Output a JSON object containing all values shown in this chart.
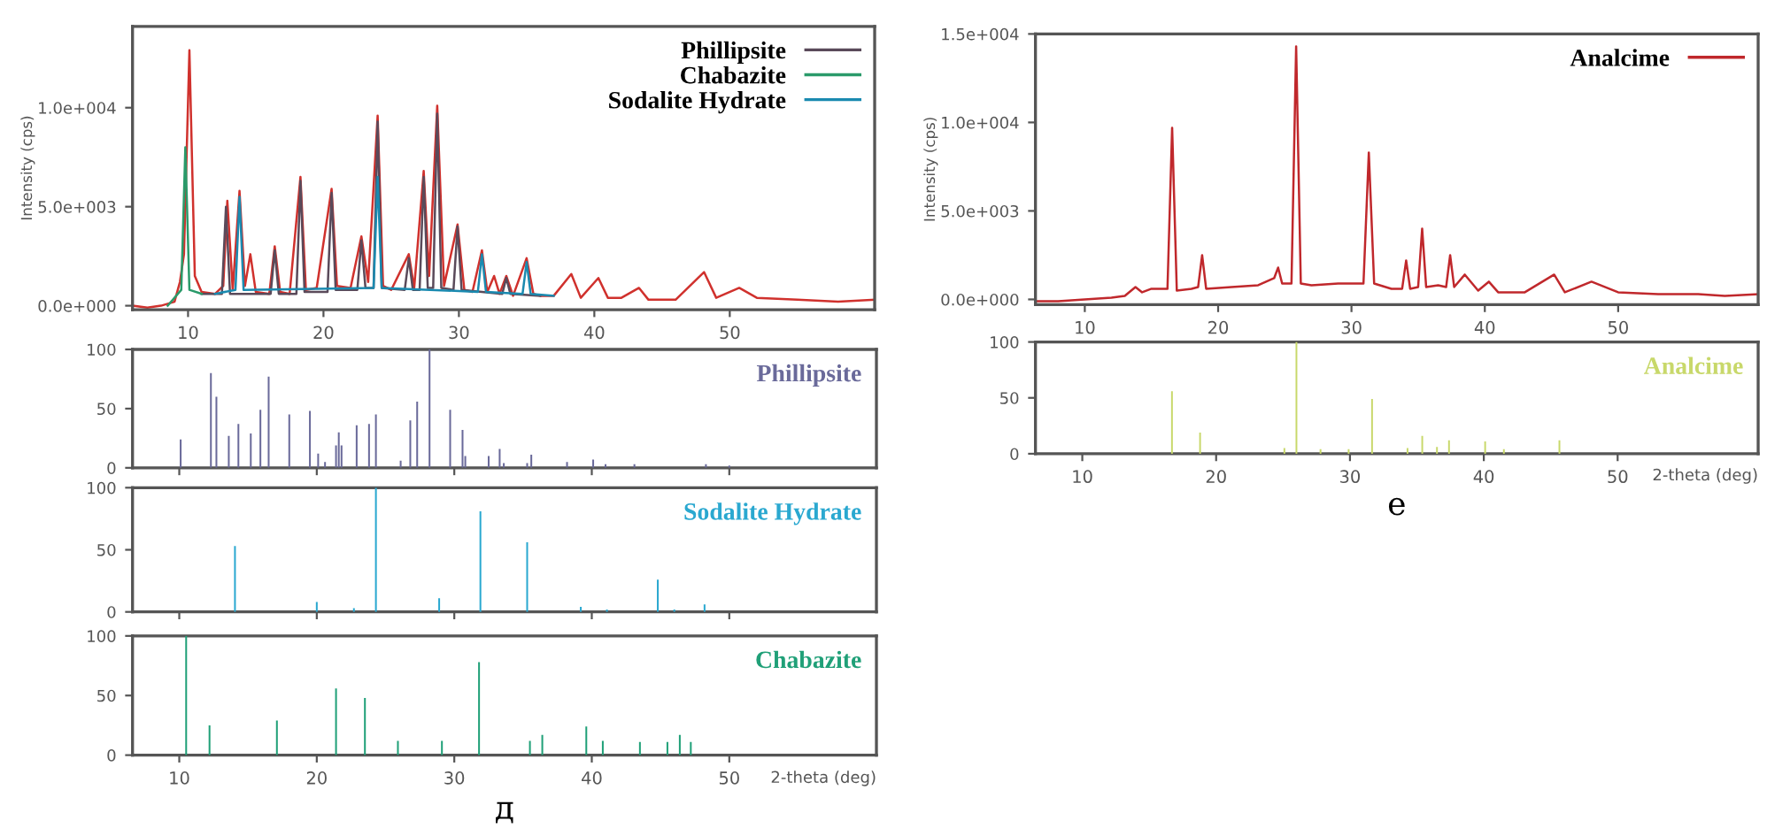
{
  "chart_data": [
    {
      "type": "line",
      "ylabel": "Intensity (cps)",
      "xlim": [
        5.9,
        60.7
      ],
      "ylim": [
        -200,
        14100
      ],
      "xticks": [
        10,
        20,
        30,
        40,
        50
      ],
      "yticks": [
        {
          "value": 0,
          "label": "0.0e+000"
        },
        {
          "value": 5000,
          "label": "5.0e+003"
        },
        {
          "value": 10000,
          "label": "1.0e+004"
        }
      ],
      "grid": false,
      "legend": "top right",
      "series": [
        {
          "color": "#d0312d",
          "x": [
            5.9,
            7,
            8,
            9,
            9.4,
            9.7,
            10.1,
            10.5,
            11,
            12,
            12.6,
            12.9,
            13.3,
            13.8,
            14.2,
            14.6,
            15,
            16,
            16.4,
            16.8,
            17.5,
            18.3,
            18.7,
            19.5,
            20.6,
            21,
            22,
            22.8,
            23.3,
            24.0,
            24.4,
            25,
            26.3,
            26.7,
            27.4,
            27.8,
            28.4,
            28.9,
            29.9,
            30.4,
            31,
            31.7,
            32.1,
            32.6,
            33,
            33.5,
            34,
            35,
            35.5,
            36,
            37,
            38.3,
            39,
            40.3,
            41,
            42,
            43.3,
            44,
            46,
            48.1,
            49,
            50.7,
            52,
            55,
            58,
            60.7
          ],
          "values": [
            0,
            -100,
            0,
            200,
            1200,
            2600,
            12900,
            1500,
            700,
            600,
            1000,
            5300,
            800,
            5800,
            1000,
            2600,
            700,
            600,
            3000,
            700,
            600,
            6500,
            800,
            900,
            5900,
            1000,
            900,
            3500,
            1200,
            9600,
            1000,
            800,
            2600,
            900,
            6800,
            1500,
            10100,
            1000,
            4100,
            800,
            700,
            2800,
            700,
            1500,
            600,
            1500,
            500,
            2400,
            600,
            500,
            500,
            1600,
            400,
            1400,
            400,
            400,
            900,
            300,
            300,
            1700,
            400,
            900,
            400,
            300,
            200,
            300
          ]
        },
        {
          "name": "Phillipsite",
          "color": "#5a4a5a",
          "x": [
            11,
            12.5,
            12.8,
            13.1,
            16.1,
            16.4,
            16.7,
            18.0,
            18.3,
            18.6,
            20.3,
            20.6,
            20.9,
            22.5,
            22.8,
            23.1,
            23.7,
            24.0,
            24.3,
            26.0,
            26.3,
            26.6,
            27.1,
            27.4,
            27.7,
            28.1,
            28.4,
            28.7,
            29.6,
            29.9,
            30.2,
            33.2,
            33.5,
            33.8,
            36
          ],
          "values": [
            600,
            600,
            5000,
            600,
            600,
            2800,
            600,
            600,
            6300,
            700,
            700,
            5700,
            800,
            800,
            3300,
            900,
            900,
            9300,
            900,
            800,
            2400,
            800,
            800,
            6500,
            900,
            900,
            9700,
            900,
            800,
            4000,
            800,
            600,
            1400,
            600,
            500
          ]
        },
        {
          "name": "Chabazite",
          "color": "#2a9a6a",
          "x": [
            8.5,
            9.5,
            9.8,
            10.1,
            11
          ],
          "values": [
            0,
            800,
            8000,
            800,
            600
          ]
        },
        {
          "name": "Sodalite Hydrate",
          "color": "#1a8ab0",
          "x": [
            12,
            13.5,
            13.8,
            14.1,
            23.7,
            24.0,
            24.3,
            31.4,
            31.7,
            32.0,
            34.7,
            35.0,
            35.3,
            37
          ],
          "values": [
            600,
            800,
            5500,
            800,
            900,
            6500,
            900,
            700,
            2600,
            700,
            600,
            2200,
            600,
            500
          ]
        }
      ]
    },
    {
      "type": "bar",
      "xlim": [
        6.6,
        60.7
      ],
      "ylim": [
        0,
        100
      ],
      "xticks": [
        10,
        20,
        30,
        40,
        50
      ],
      "yticks": [
        0,
        50,
        100
      ],
      "grid": false,
      "legend": "top right",
      "tick_labels": "y",
      "series": [
        {
          "name": "Phillipsite",
          "color": "#6a6a9a",
          "x": [
            10.1,
            12.3,
            12.7,
            13.6,
            14.3,
            15.2,
            15.9,
            16.5,
            18.0,
            19.5,
            20.1,
            20.6,
            21.4,
            21.6,
            21.8,
            22.9,
            23.8,
            24.3,
            26.1,
            26.8,
            27.3,
            28.2,
            29.7,
            30.6,
            30.8,
            32.5,
            33.3,
            33.6,
            35.3,
            35.6,
            38.2,
            40.1,
            41.0,
            43.1,
            48.3,
            50.0
          ],
          "values": [
            24,
            80,
            60,
            27,
            37,
            29,
            49,
            77,
            45,
            48,
            12,
            5,
            19,
            30,
            19,
            36,
            37,
            45,
            6,
            40,
            56,
            100,
            49,
            32,
            10,
            10,
            16,
            4,
            4,
            11,
            5,
            7,
            3,
            3,
            3,
            2
          ]
        }
      ]
    },
    {
      "type": "bar",
      "xlim": [
        6.6,
        60.7
      ],
      "ylim": [
        0,
        100
      ],
      "xticks": [
        10,
        20,
        30,
        40,
        50
      ],
      "yticks": [
        0,
        50,
        100
      ],
      "grid": false,
      "legend": "top right",
      "tick_labels": "y",
      "series": [
        {
          "name": "Sodalite Hydrate",
          "color": "#2aa8d0",
          "x": [
            14.05,
            20.0,
            22.7,
            24.3,
            28.9,
            31.9,
            35.3,
            39.2,
            41.1,
            44.8,
            46.0,
            48.2
          ],
          "values": [
            53,
            8,
            3,
            100,
            11,
            81,
            56,
            4,
            2,
            26,
            2,
            6
          ]
        }
      ]
    },
    {
      "type": "bar",
      "xlabel": "2-theta (deg)",
      "xlim": [
        6.6,
        60.7
      ],
      "ylim": [
        0,
        100
      ],
      "xticks": [
        10,
        20,
        30,
        40,
        50
      ],
      "yticks": [
        0,
        50,
        100
      ],
      "grid": false,
      "legend": "top right",
      "annotations": [
        "д"
      ],
      "series": [
        {
          "name": "Chabazite",
          "color": "#20a078",
          "x": [
            10.5,
            12.2,
            17.1,
            21.4,
            23.5,
            25.9,
            29.1,
            31.8,
            35.5,
            36.4,
            39.6,
            40.8,
            43.5,
            45.5,
            46.4,
            47.2
          ],
          "values": [
            100,
            25,
            29,
            56,
            48,
            12,
            12,
            78,
            12,
            17,
            24,
            12,
            11,
            11,
            17,
            11
          ]
        }
      ]
    },
    {
      "type": "line",
      "ylabel": "Intensity (cps)",
      "xlim": [
        6.3,
        60.5
      ],
      "ylim": [
        -300,
        15000
      ],
      "xticks": [
        10,
        20,
        30,
        40,
        50
      ],
      "yticks": [
        {
          "value": 0,
          "label": "0.0e+000"
        },
        {
          "value": 5000,
          "label": "5.0e+003"
        },
        {
          "value": 10000,
          "label": "1.0e+004"
        },
        {
          "value": 15000,
          "label": "1.5e+004"
        }
      ],
      "grid": false,
      "legend": "top right",
      "series": [
        {
          "name": "Analcime",
          "color": "#c0282c",
          "x": [
            6.3,
            8,
            10,
            12,
            13,
            13.8,
            14.3,
            15,
            16.2,
            16.55,
            16.9,
            18,
            18.5,
            18.8,
            19.1,
            21,
            23,
            24.2,
            24.5,
            24.8,
            25.5,
            25.85,
            26.2,
            27,
            29,
            30,
            30.9,
            31.3,
            31.7,
            33,
            33.8,
            34.1,
            34.4,
            35.0,
            35.3,
            35.6,
            36.5,
            37.1,
            37.4,
            37.7,
            38.5,
            39.5,
            40.3,
            41,
            43,
            45.2,
            46,
            48.0,
            50,
            53,
            56,
            58,
            60.5
          ],
          "values": [
            -100,
            -100,
            0,
            100,
            200,
            700,
            400,
            600,
            600,
            9700,
            500,
            600,
            700,
            2500,
            600,
            700,
            800,
            1200,
            1800,
            900,
            900,
            14300,
            900,
            800,
            900,
            900,
            900,
            8300,
            900,
            600,
            600,
            2200,
            600,
            700,
            4000,
            700,
            800,
            700,
            2500,
            700,
            1400,
            500,
            1000,
            400,
            400,
            1400,
            400,
            1000,
            400,
            300,
            300,
            200,
            300
          ]
        }
      ]
    },
    {
      "type": "bar",
      "xlabel": "2-theta (deg)",
      "xlim": [
        6.5,
        60.5
      ],
      "ylim": [
        0,
        100
      ],
      "xticks": [
        10,
        20,
        30,
        40,
        50
      ],
      "yticks": [
        0,
        50,
        100
      ],
      "grid": false,
      "legend": "top right",
      "annotations": [
        "e"
      ],
      "series": [
        {
          "name": "Analcime",
          "color": "#c8d86a",
          "x": [
            16.7,
            18.8,
            25.1,
            26.0,
            27.8,
            29.9,
            31.65,
            34.3,
            35.4,
            36.5,
            37.4,
            40.1,
            41.5,
            45.65
          ],
          "values": [
            56,
            19,
            5,
            100,
            4,
            4,
            49,
            5,
            16,
            6,
            12,
            11,
            4,
            12
          ]
        }
      ]
    }
  ]
}
